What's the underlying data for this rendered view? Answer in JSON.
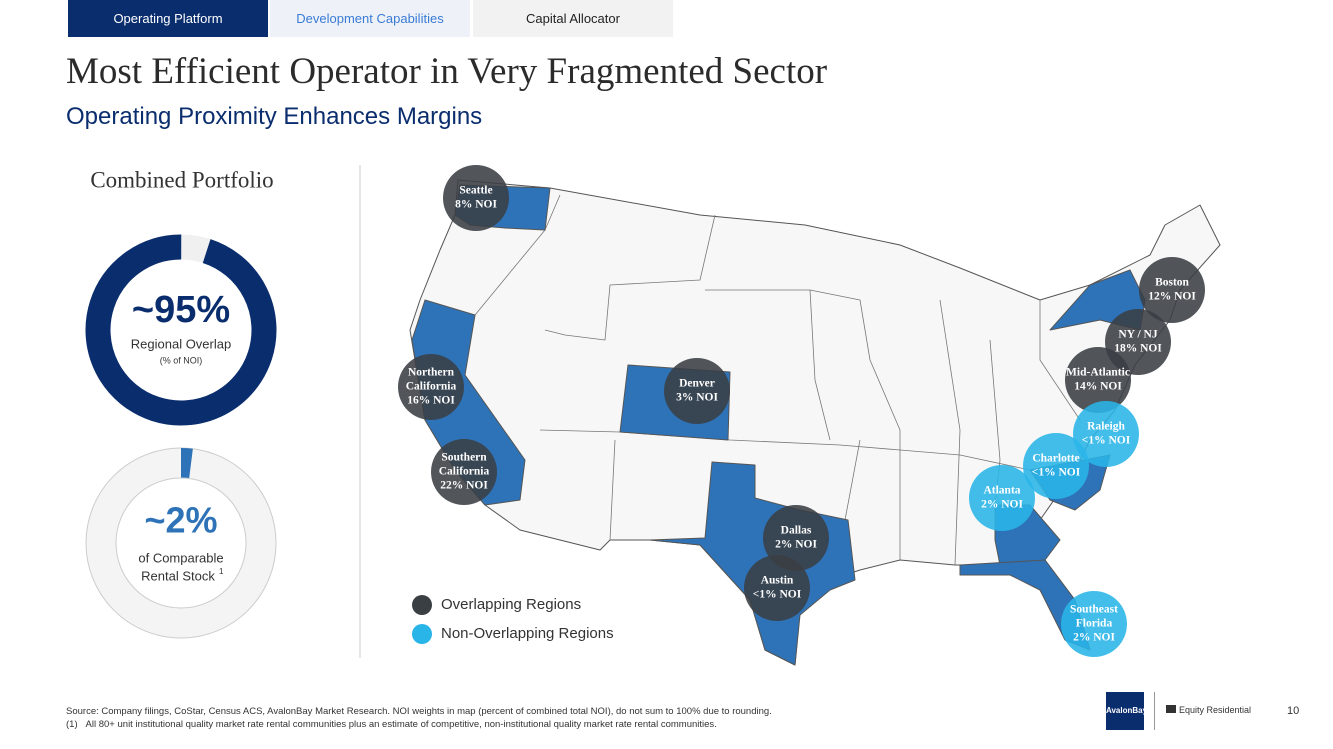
{
  "tabs": [
    "Operating Platform",
    "Development Capabilities",
    "Capital Allocator"
  ],
  "title": "Most Efficient Operator in Very Fragmented Sector",
  "subtitle": "Operating Proximity Enhances Margins",
  "portfolio": {
    "heading": "Combined Portfolio",
    "donuts": [
      {
        "value": 95,
        "label": "~95%",
        "lines": [
          "Regional Overlap",
          "(% of NOI)"
        ]
      },
      {
        "value": 2,
        "label": "~2%",
        "lines": [
          "of Comparable",
          "Rental Stock"
        ],
        "footnote_ref": "1"
      }
    ]
  },
  "map": {
    "legend": [
      "Overlapping Regions",
      "Non-Overlapping Regions"
    ],
    "regions": [
      {
        "name": [
          "Seattle"
        ],
        "noi": "8% NOI",
        "group": 0
      },
      {
        "name": [
          "Northern",
          "California"
        ],
        "noi": "16% NOI",
        "group": 0
      },
      {
        "name": [
          "Southern",
          "California"
        ],
        "noi": "22% NOI",
        "group": 0
      },
      {
        "name": [
          "Denver"
        ],
        "noi": "3% NOI",
        "group": 0
      },
      {
        "name": [
          "Dallas"
        ],
        "noi": "2% NOI",
        "group": 0
      },
      {
        "name": [
          "Austin"
        ],
        "noi": "<1% NOI",
        "group": 0
      },
      {
        "name": [
          "Boston"
        ],
        "noi": "12% NOI",
        "group": 0
      },
      {
        "name": [
          "NY / NJ"
        ],
        "noi": "18% NOI",
        "group": 0
      },
      {
        "name": [
          "Mid-Atlantic"
        ],
        "noi": "14% NOI",
        "group": 0
      },
      {
        "name": [
          "Raleigh"
        ],
        "noi": "<1% NOI",
        "group": 1
      },
      {
        "name": [
          "Charlotte"
        ],
        "noi": "<1% NOI",
        "group": 1
      },
      {
        "name": [
          "Atlanta"
        ],
        "noi": "2% NOI",
        "group": 1
      },
      {
        "name": [
          "Southeast",
          "Florida"
        ],
        "noi": "2% NOI",
        "group": 1
      }
    ]
  },
  "footer": {
    "source": "Source: Company filings, CoStar, Census ACS, AvalonBay Market Research. NOI weights in map (percent of combined total NOI), do not sum to 100% due to rounding.",
    "note_ref": "(1)",
    "note": "All 80+ unit institutional quality market rate rental communities plus an estimate of competitive, non-institutional quality market rate rental communities.",
    "logos": [
      "AvalonBay",
      "Equity Residential"
    ],
    "page": "10"
  }
}
